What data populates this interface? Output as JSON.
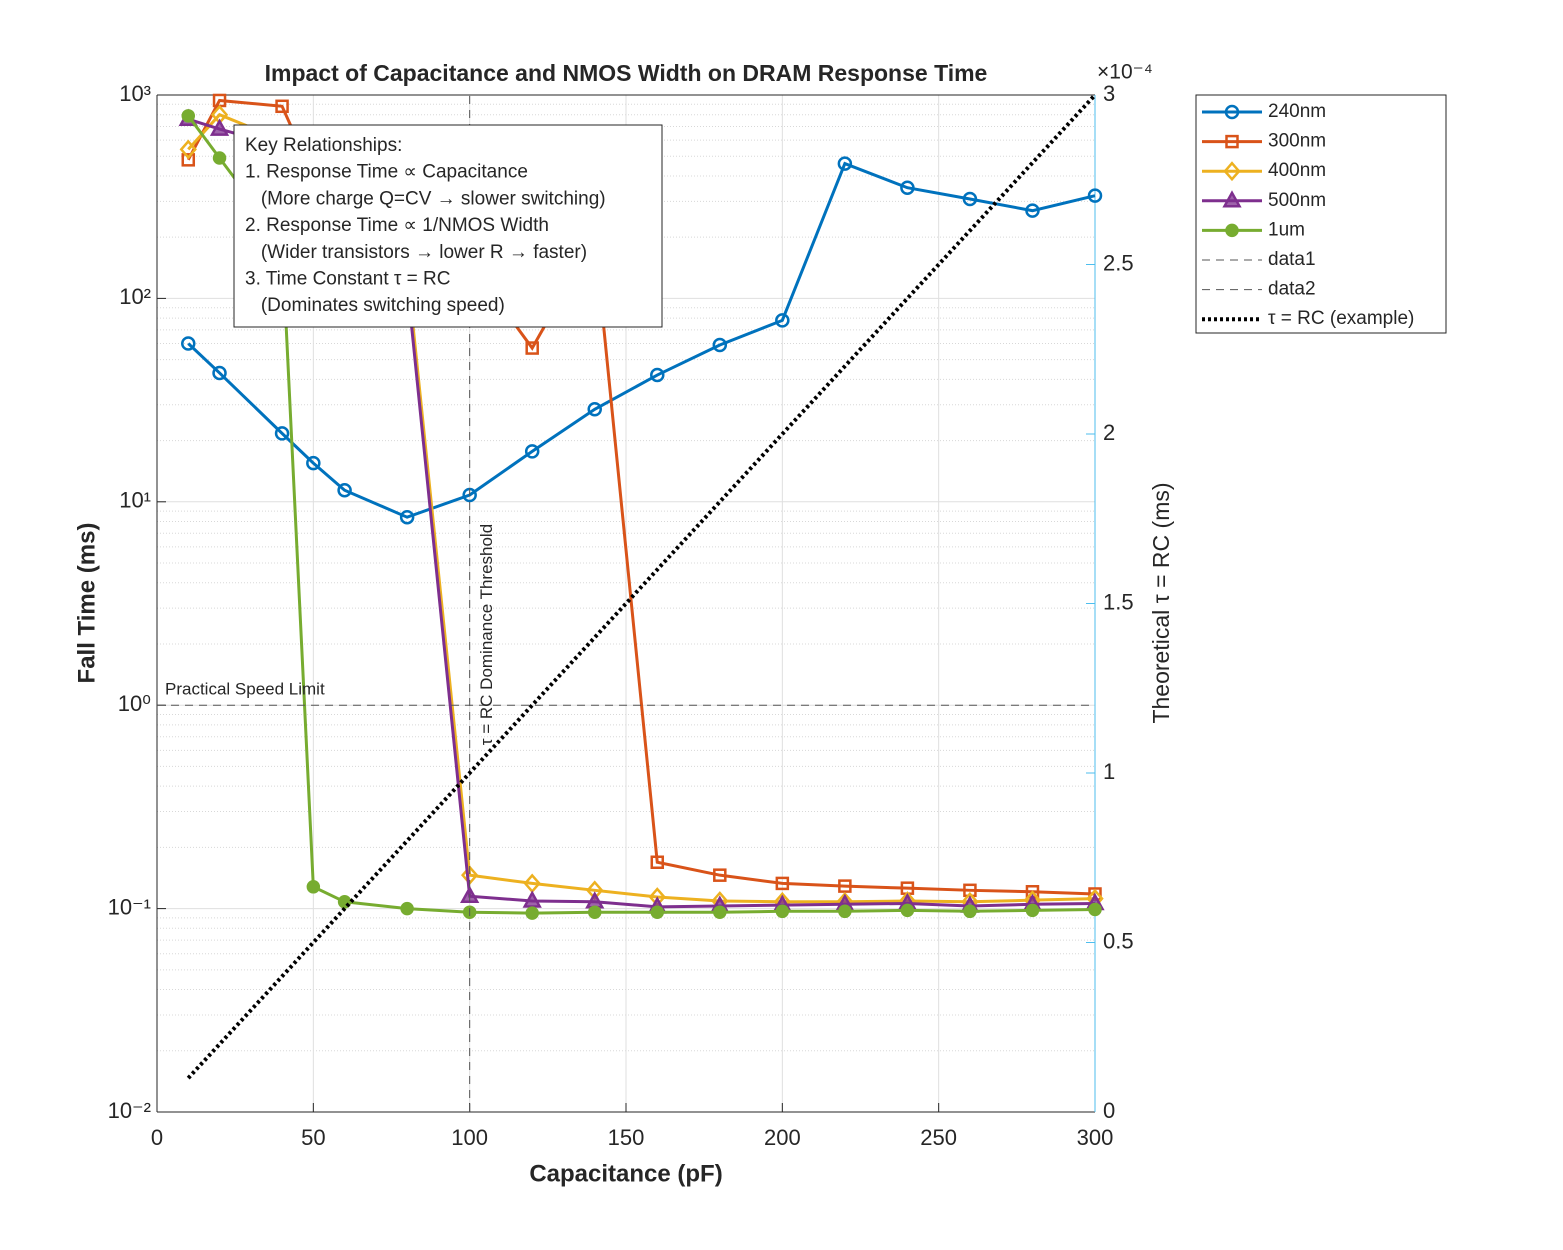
{
  "chart_data": {
    "type": "line",
    "title": "Impact of Capacitance and NMOS Width on DRAM Response Time",
    "x_label": "Capacitance (pF)",
    "y_label": "Fall Time (ms)",
    "y2_label": "Theoretical τ = RC (ms)",
    "y2_exponent_label": "×10⁻⁴",
    "y_scale": "log",
    "grid": true,
    "minor_grid": true,
    "legend_position": "northeastoutside",
    "x": [
      10,
      20,
      40,
      50,
      60,
      80,
      100,
      120,
      140,
      160,
      180,
      200,
      220,
      240,
      260,
      280,
      300
    ],
    "xlim": [
      0,
      300
    ],
    "xticks": [
      0,
      50,
      100,
      150,
      200,
      250,
      300
    ],
    "ylim": [
      0.01,
      1000
    ],
    "yticks": [
      {
        "value": 0.01,
        "label": "10⁻²"
      },
      {
        "value": 0.1,
        "label": "10⁻¹"
      },
      {
        "value": 1,
        "label": "10⁰"
      },
      {
        "value": 10,
        "label": "10¹"
      },
      {
        "value": 100,
        "label": "10²"
      },
      {
        "value": 1000,
        "label": "10³"
      }
    ],
    "y2lim": [
      0,
      3
    ],
    "y2ticks": [
      0,
      0.5,
      1,
      1.5,
      2,
      2.5,
      3
    ],
    "y2_color": "#4DBEEE",
    "series": [
      {
        "name": "240nm",
        "color": "#0072BD",
        "marker": "circle",
        "style": "solid",
        "values": [
          60,
          43,
          21.7,
          15.5,
          11.4,
          8.4,
          10.8,
          17.7,
          28.5,
          42,
          59,
          78,
          460,
          350,
          308,
          270,
          320
        ]
      },
      {
        "name": "300nm",
        "color": "#D95319",
        "marker": "square",
        "style": "solid",
        "values": [
          480,
          940,
          880,
          400,
          300,
          200,
          150,
          57,
          200,
          0.169,
          0.146,
          0.133,
          0.129,
          0.126,
          0.123,
          0.121,
          0.118
        ]
      },
      {
        "name": "400nm",
        "color": "#EDB120",
        "marker": "diamond",
        "style": "solid",
        "values": [
          540,
          800,
          600,
          500,
          400,
          140,
          0.146,
          0.133,
          0.123,
          0.114,
          0.109,
          0.108,
          0.108,
          0.109,
          0.108,
          0.11,
          0.112
        ]
      },
      {
        "name": "500nm",
        "color": "#7E2F8E",
        "marker": "triangle",
        "style": "solid",
        "values": [
          760,
          680,
          560,
          400,
          300,
          120,
          0.115,
          0.109,
          0.108,
          0.102,
          0.103,
          0.104,
          0.105,
          0.106,
          0.103,
          0.105,
          0.106
        ]
      },
      {
        "name": "1um",
        "color": "#77AC30",
        "marker": "filled-circle",
        "style": "solid",
        "values": [
          790,
          490,
          190,
          0.128,
          0.108,
          0.1,
          0.096,
          0.095,
          0.096,
          0.096,
          0.096,
          0.097,
          0.097,
          0.098,
          0.097,
          0.098,
          0.099
        ]
      },
      {
        "name": "data1",
        "color": "#555555",
        "marker": "none",
        "style": "dashed",
        "x": [
          0,
          300
        ],
        "values": [
          1,
          1
        ]
      },
      {
        "name": "data2",
        "color": "#555555",
        "marker": "none",
        "style": "dashed",
        "x": [
          100,
          100
        ],
        "values": [
          0.01,
          1000
        ]
      },
      {
        "name": "τ = RC (example)",
        "color": "#000000",
        "marker": "none",
        "style": "dotted",
        "axis": "y2",
        "x": [
          10,
          300
        ],
        "values": [
          0.1,
          3
        ]
      }
    ],
    "annotations": [
      {
        "text": "Practical Speed Limit",
        "x": 0,
        "y": 1
      },
      {
        "text": "τ = RC Dominance Threshold",
        "x": 100,
        "y": 1
      }
    ],
    "text_box": [
      "Key Relationships:",
      "1. Response Time ∝ Capacitance",
      "   (More charge Q=CV → slower switching)",
      "2. Response Time ∝ 1/NMOS Width",
      "   (Wider transistors → lower R → faster)",
      "3. Time Constant τ = RC",
      "   (Dominates switching speed)"
    ]
  }
}
